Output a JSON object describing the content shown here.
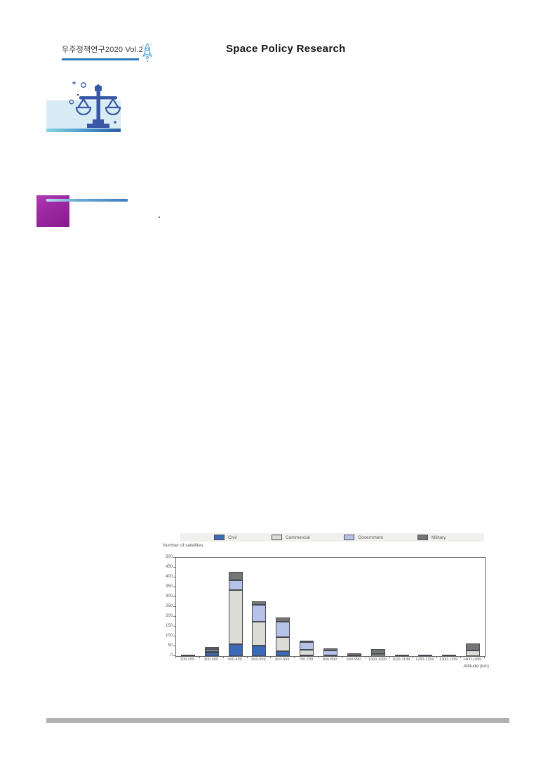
{
  "header": {
    "journal_title": "우주정책연구2020 Vol.2",
    "page_title": "Space Policy Research"
  },
  "body": {
    "period": "."
  },
  "icons": {
    "header_icon": "rocket-icon",
    "hero_icon": "balance-scale-icon"
  },
  "colors": {
    "header_underline": "#2e78bb",
    "hero_background": "#d8ecf6",
    "hero_icon_blue": "#3a57a7",
    "hero_strip_left": "#86d5de",
    "hero_strip_right": "#2a5da9",
    "section_marker_purple": "#9c27a0",
    "section_line_blue": "#3d7ec0",
    "legend_background": "#f0f0ee",
    "footer_bar": "#b2b2b2"
  },
  "chart_data": {
    "type": "bar",
    "stacked": true,
    "ylabel_above": "Number of satellites",
    "xlabel": "Altitude (km)",
    "ylim": [
      0,
      500
    ],
    "ytick_step": 50,
    "grid": false,
    "legend_position": "top",
    "categories": [
      "200-299",
      "300-399",
      "400-499",
      "500-599",
      "600-699",
      "700-799",
      "800-899",
      "900-999",
      "1000-1099",
      "1100-1199",
      "1200-1299",
      "1300-1399",
      "1400-1499"
    ],
    "series": [
      {
        "name": "Civil",
        "color": "#3a6ab8",
        "values": [
          0,
          18,
          62,
          55,
          26,
          5,
          5,
          0,
          0,
          0,
          0,
          0,
          0
        ]
      },
      {
        "name": "Commercial",
        "color": "#dcdcd7",
        "values": [
          0,
          8,
          273,
          120,
          72,
          28,
          0,
          4,
          12,
          0,
          0,
          0,
          30
        ]
      },
      {
        "name": "Government",
        "color": "#b5c3e8",
        "values": [
          0,
          11,
          51,
          85,
          78,
          40,
          25,
          0,
          0,
          0,
          0,
          0,
          0
        ]
      },
      {
        "name": "Military",
        "color": "#757575",
        "values": [
          5,
          8,
          42,
          20,
          20,
          2,
          8,
          10,
          23,
          7,
          4,
          6,
          33
        ]
      }
    ]
  }
}
